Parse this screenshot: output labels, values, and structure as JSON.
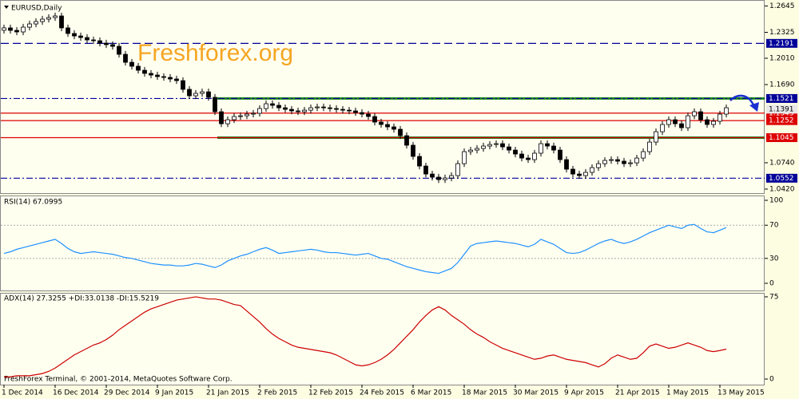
{
  "chart_data": [
    {
      "type": "candlestick",
      "title": "EURUSD,Daily",
      "watermark": "Freshforex.org",
      "open": [
        1.235,
        1.2379,
        1.2349,
        1.233,
        1.2388,
        1.2427,
        1.2456,
        1.2485,
        1.2505,
        1.2524,
        1.2379,
        1.2311,
        1.2281,
        1.2262,
        1.2233,
        1.2223,
        1.2194,
        1.2175,
        1.2155,
        1.2058,
        1.1961,
        1.1913,
        1.1864,
        1.1826,
        1.1806,
        1.1787,
        1.1777,
        1.1758,
        1.1738,
        1.1632,
        1.1554,
        1.1583,
        1.1602,
        1.1535,
        1.136,
        1.1214,
        1.1263,
        1.1302,
        1.1311,
        1.1331,
        1.1341,
        1.1399,
        1.1457,
        1.1438,
        1.1408,
        1.1389,
        1.137,
        1.136,
        1.1379,
        1.1408,
        1.1418,
        1.1408,
        1.1399,
        1.1389,
        1.1379,
        1.137,
        1.135,
        1.1331,
        1.1302,
        1.1234,
        1.1205,
        1.1176,
        1.1147,
        1.1069,
        1.0953,
        1.0817,
        1.07,
        1.0603,
        1.0565,
        1.0535,
        1.0555,
        1.0584,
        1.0729,
        1.0875,
        1.0894,
        1.0914,
        1.0943,
        1.0962,
        1.0972,
        1.0933,
        1.0894,
        1.0846,
        1.0797,
        1.0778,
        1.0856,
        1.0972,
        1.0943,
        1.0894,
        1.0778,
        1.0662,
        1.0603,
        1.0584,
        1.0623,
        1.0681,
        1.0729,
        1.0768,
        1.0778,
        1.0759,
        1.0729,
        1.0739,
        1.0797,
        1.0875,
        1.0991,
        1.1117,
        1.1205,
        1.1263,
        1.1214,
        1.1166,
        1.1311,
        1.136,
        1.1263,
        1.1205,
        1.1244,
        1.1331
      ],
      "high": [
        1.2419,
        1.2419,
        1.2389,
        1.2428,
        1.2467,
        1.2496,
        1.2525,
        1.2545,
        1.2564,
        1.2564,
        1.2419,
        1.2351,
        1.2321,
        1.2302,
        1.2273,
        1.2263,
        1.2234,
        1.2215,
        1.2195,
        1.2098,
        1.2001,
        1.1953,
        1.1904,
        1.1866,
        1.1846,
        1.1827,
        1.1817,
        1.1798,
        1.1778,
        1.1672,
        1.1623,
        1.1642,
        1.1642,
        1.1575,
        1.14,
        1.1303,
        1.1342,
        1.1351,
        1.1371,
        1.1381,
        1.1439,
        1.1497,
        1.1497,
        1.1478,
        1.1448,
        1.1429,
        1.141,
        1.1419,
        1.1448,
        1.1458,
        1.1458,
        1.1448,
        1.1439,
        1.1429,
        1.1419,
        1.141,
        1.139,
        1.1371,
        1.1342,
        1.1274,
        1.1245,
        1.1216,
        1.1187,
        1.1109,
        1.0993,
        1.0857,
        1.074,
        1.0643,
        1.0605,
        1.0595,
        1.0624,
        1.0769,
        1.0915,
        1.0934,
        1.0954,
        1.0983,
        1.1002,
        1.1012,
        1.1012,
        1.0973,
        1.0934,
        1.0886,
        1.0837,
        1.0896,
        1.1012,
        1.1012,
        1.0983,
        1.0934,
        1.0818,
        1.0702,
        1.0643,
        1.0663,
        1.0721,
        1.0769,
        1.0808,
        1.0818,
        1.0818,
        1.0799,
        1.0779,
        1.0837,
        1.0915,
        1.1031,
        1.1157,
        1.1245,
        1.1303,
        1.1303,
        1.1254,
        1.1351,
        1.14,
        1.14,
        1.1303,
        1.1284,
        1.1371,
        1.1448
      ],
      "low": [
        1.231,
        1.2309,
        1.229,
        1.229,
        1.2348,
        1.2387,
        1.2416,
        1.2445,
        1.2465,
        1.2339,
        1.2271,
        1.2241,
        1.2222,
        1.2193,
        1.2183,
        1.2154,
        1.2135,
        1.2115,
        1.2018,
        1.1921,
        1.1873,
        1.1824,
        1.1786,
        1.1766,
        1.1747,
        1.1737,
        1.1718,
        1.1698,
        1.1592,
        1.1514,
        1.1514,
        1.1543,
        1.1495,
        1.132,
        1.1174,
        1.1174,
        1.1223,
        1.1262,
        1.1271,
        1.1291,
        1.1301,
        1.1359,
        1.1398,
        1.1368,
        1.1349,
        1.133,
        1.132,
        1.132,
        1.1339,
        1.1368,
        1.1368,
        1.1359,
        1.1349,
        1.1339,
        1.133,
        1.131,
        1.1291,
        1.1262,
        1.1194,
        1.1165,
        1.1136,
        1.1107,
        1.1029,
        1.0913,
        1.0777,
        1.066,
        1.0563,
        1.0525,
        1.0495,
        1.0495,
        1.0515,
        1.0544,
        1.0689,
        1.0835,
        1.0854,
        1.0874,
        1.0903,
        1.0922,
        1.0893,
        1.0854,
        1.0806,
        1.0757,
        1.0738,
        1.0738,
        1.0816,
        1.0903,
        1.0854,
        1.0738,
        1.0622,
        1.0563,
        1.0544,
        1.0544,
        1.0583,
        1.0641,
        1.0689,
        1.0728,
        1.0719,
        1.0689,
        1.0689,
        1.0699,
        1.0757,
        1.0835,
        1.0951,
        1.1077,
        1.1165,
        1.1174,
        1.1126,
        1.1126,
        1.1271,
        1.1223,
        1.1165,
        1.1165,
        1.1204,
        1.1291
      ],
      "close": [
        1.2379,
        1.2349,
        1.233,
        1.2388,
        1.2427,
        1.2456,
        1.2485,
        1.2505,
        1.2524,
        1.2379,
        1.2311,
        1.2281,
        1.2262,
        1.2233,
        1.2223,
        1.2194,
        1.2175,
        1.2155,
        1.2058,
        1.1961,
        1.1913,
        1.1864,
        1.1826,
        1.1806,
        1.1787,
        1.1777,
        1.1758,
        1.1738,
        1.1632,
        1.1554,
        1.1583,
        1.1602,
        1.1535,
        1.136,
        1.1214,
        1.1263,
        1.1302,
        1.1311,
        1.1331,
        1.1341,
        1.1399,
        1.1457,
        1.1438,
        1.1408,
        1.1389,
        1.137,
        1.136,
        1.1379,
        1.1408,
        1.1418,
        1.1408,
        1.1399,
        1.1389,
        1.1379,
        1.137,
        1.135,
        1.1331,
        1.1302,
        1.1234,
        1.1205,
        1.1176,
        1.1147,
        1.1069,
        1.0953,
        1.0817,
        1.07,
        1.0603,
        1.0565,
        1.0535,
        1.0555,
        1.0584,
        1.0729,
        1.0875,
        1.0894,
        1.0914,
        1.0943,
        1.0962,
        1.0972,
        1.0933,
        1.0894,
        1.0846,
        1.0797,
        1.0778,
        1.0856,
        1.0972,
        1.0943,
        1.0894,
        1.0778,
        1.0662,
        1.0603,
        1.0584,
        1.0623,
        1.0681,
        1.0729,
        1.0768,
        1.0778,
        1.0759,
        1.0729,
        1.0739,
        1.0797,
        1.0875,
        1.0991,
        1.1117,
        1.1205,
        1.1263,
        1.1214,
        1.1166,
        1.1311,
        1.136,
        1.1263,
        1.1205,
        1.1244,
        1.1331,
        1.1408
      ],
      "ylim": [
        1.0371,
        1.2718
      ],
      "yticks": [
        1.2645,
        1.2325,
        {
          "value": 1.201,
          "label": "1.2010"
        },
        {
          "value": 1.169,
          "label": "1.1690"
        },
        {
          "value": 1.074,
          "label": "1.0740"
        },
        {
          "value": 1.042,
          "label": "1.0420"
        }
      ],
      "levels": [
        {
          "value": 1.2191,
          "color": "#000099",
          "dash": "dashed"
        },
        {
          "value": 1.1521,
          "color": "#000099",
          "dash": "dashdot"
        },
        {
          "value": 1.1343,
          "color": "#dd0000",
          "dash": "solid"
        },
        {
          "value": 1.1252,
          "color": "#dd0000",
          "dash": "solid"
        },
        {
          "value": 1.1045,
          "color": "#dd0000",
          "dash": "solid"
        },
        {
          "value": 1.0552,
          "color": "#000099",
          "dash": "dashdot"
        }
      ],
      "support": [
        1.1521,
        1.1045
      ],
      "bid": 1.1391,
      "xticks": [
        {
          "value": 0,
          "label": "1 Dec 2014"
        },
        {
          "value": 8,
          "label": "16 Dec 2014"
        },
        {
          "value": 16,
          "label": "29 Dec 2014"
        },
        {
          "value": 24,
          "label": "9 Jan 2015"
        },
        {
          "value": 32,
          "label": "21 Jan 2015"
        },
        {
          "value": 40,
          "label": "2 Feb 2015"
        },
        {
          "value": 48,
          "label": "12 Feb 2015"
        },
        {
          "value": 56,
          "label": "24 Feb 2015"
        },
        {
          "value": 64,
          "label": "6 Mar 2015"
        },
        {
          "value": 72,
          "label": "18 Mar 2015"
        },
        {
          "value": 80,
          "label": "30 Mar 2015"
        },
        {
          "value": 88,
          "label": "9 Apr 2015"
        },
        {
          "value": 96,
          "label": "21 Apr 2015"
        },
        {
          "value": 104,
          "label": "1 May 2015"
        },
        {
          "value": 112,
          "label": "13 May 2015"
        }
      ]
    },
    {
      "type": "line",
      "title": "RSI(14) 67.0995",
      "color": "#1e90ff",
      "values": [
        36,
        38,
        41,
        43,
        45,
        47,
        49,
        51,
        53,
        48,
        42,
        38,
        36,
        37,
        38,
        37,
        36,
        35,
        33,
        31,
        30,
        28,
        26,
        24,
        23,
        22,
        22,
        21,
        21,
        22,
        24,
        23,
        21,
        19,
        22,
        27,
        30,
        33,
        35,
        38,
        41,
        43,
        40,
        36,
        37,
        38,
        39,
        40,
        41,
        40,
        38,
        37,
        37,
        36,
        35,
        34,
        35,
        36,
        33,
        30,
        29,
        26,
        23,
        20,
        18,
        16,
        14,
        13,
        12,
        15,
        18,
        25,
        35,
        45,
        48,
        49,
        50,
        51,
        50,
        49,
        48,
        46,
        44,
        47,
        53,
        50,
        47,
        42,
        37,
        36,
        37,
        40,
        44,
        48,
        51,
        53,
        50,
        48,
        50,
        53,
        57,
        61,
        64,
        67,
        70,
        68,
        66,
        70,
        71,
        66,
        62,
        61,
        64,
        67.1
      ],
      "ylim": [
        -9.6,
        105.8
      ],
      "yticks": [
        100,
        70,
        30,
        0
      ],
      "levels": [
        70,
        30
      ]
    },
    {
      "type": "line",
      "title": "ADX(14) 27.3255 +DI:33.0138 -DI:15.5219",
      "color": "#cc0000",
      "values": [
        2,
        2,
        3,
        3,
        3,
        4,
        5,
        7,
        10,
        14,
        18,
        22,
        25,
        28,
        31,
        33,
        36,
        40,
        45,
        49,
        53,
        57,
        61,
        64,
        66,
        68,
        70,
        72,
        73,
        74,
        75,
        74,
        73,
        73,
        72,
        70,
        68,
        67,
        62,
        57,
        52,
        46,
        41,
        37,
        34,
        31,
        29,
        28,
        27,
        26,
        25,
        24,
        22,
        19,
        16,
        13,
        12,
        13,
        15,
        18,
        22,
        27,
        33,
        39,
        45,
        52,
        58,
        63,
        66,
        63,
        58,
        54,
        50,
        45,
        41,
        38,
        34,
        31,
        28,
        26,
        24,
        22,
        20,
        18,
        19,
        21,
        22,
        20,
        18,
        17,
        16,
        15,
        13,
        11,
        14,
        19,
        22,
        20,
        18,
        19,
        24,
        30,
        32,
        30,
        28,
        29,
        31,
        33,
        31,
        29,
        26,
        25,
        26,
        27.3
      ],
      "ylim": [
        -5.1,
        78.6
      ],
      "yticks": [
        75,
        0
      ],
      "footer": "FreshForex Terminal, © 2001-2014, MetaQuotes Software Corp."
    }
  ]
}
